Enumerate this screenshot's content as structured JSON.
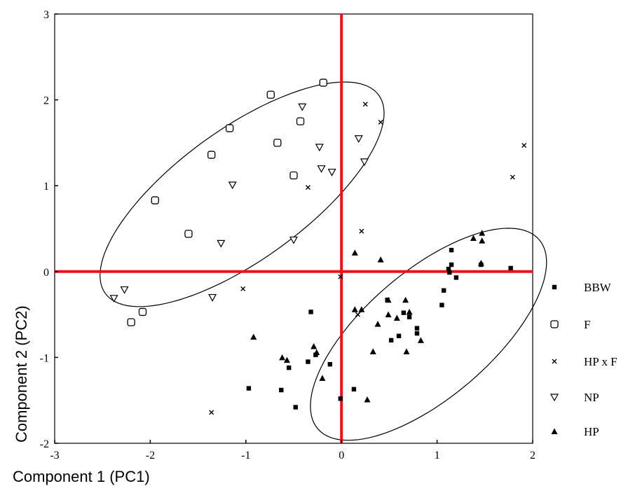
{
  "chart_data": {
    "type": "scatter",
    "xlabel": "Component 1 (PC1)",
    "ylabel": "Component 2 (PC2)",
    "xlim": [
      -3,
      2
    ],
    "ylim": [
      -2,
      3
    ],
    "x_ticks": [
      "-3",
      "-2",
      "-1",
      "0",
      "1",
      "2"
    ],
    "y_ticks": [
      "-2",
      "-1",
      "0",
      "1",
      "2",
      "3"
    ],
    "grid": false,
    "legend_position": "right",
    "reference_lines": {
      "x": 0,
      "y": 0,
      "color": "#e8141c"
    },
    "ellipses": [
      {
        "center": [
          -1.04,
          0.9
        ],
        "semi_axes": [
          1.84,
          0.73
        ],
        "angle_deg": 40
      },
      {
        "center": [
          0.91,
          -0.73
        ],
        "semi_axes": [
          1.6,
          0.7
        ],
        "angle_deg": 45
      }
    ],
    "series": [
      {
        "name": "BBW",
        "marker": "square-filled",
        "points": [
          [
            1.15,
            0.25
          ],
          [
            1.15,
            0.08
          ],
          [
            1.12,
            0.03
          ],
          [
            1.13,
            -0.01
          ],
          [
            1.2,
            -0.07
          ],
          [
            1.07,
            -0.22
          ],
          [
            1.05,
            -0.39
          ],
          [
            1.46,
            0.08
          ],
          [
            1.77,
            0.04
          ],
          [
            0.48,
            -0.33
          ],
          [
            0.65,
            -0.48
          ],
          [
            0.71,
            -0.53
          ],
          [
            0.79,
            -0.66
          ],
          [
            0.79,
            -0.72
          ],
          [
            0.6,
            -0.75
          ],
          [
            0.52,
            -0.8
          ],
          [
            -0.32,
            -0.47
          ],
          [
            -0.27,
            -0.97
          ],
          [
            -0.35,
            -1.05
          ],
          [
            -0.12,
            -1.08
          ],
          [
            -0.55,
            -1.12
          ],
          [
            -0.63,
            -1.38
          ],
          [
            -0.97,
            -1.36
          ],
          [
            -0.48,
            -1.58
          ],
          [
            0.13,
            -1.37
          ],
          [
            -0.01,
            -1.48
          ]
        ]
      },
      {
        "name": "F",
        "marker": "square-open",
        "points": [
          [
            -0.19,
            2.2
          ],
          [
            -0.74,
            2.06
          ],
          [
            -0.43,
            1.75
          ],
          [
            -1.17,
            1.67
          ],
          [
            -0.67,
            1.5
          ],
          [
            -1.36,
            1.36
          ],
          [
            -0.5,
            1.12
          ],
          [
            -1.95,
            0.83
          ],
          [
            -1.6,
            0.44
          ],
          [
            -2.08,
            -0.47
          ],
          [
            -2.2,
            -0.59
          ]
        ]
      },
      {
        "name": "HP x F",
        "marker": "x",
        "points": [
          [
            0.25,
            1.95
          ],
          [
            0.41,
            1.74
          ],
          [
            1.91,
            1.47
          ],
          [
            1.79,
            1.1
          ],
          [
            -0.35,
            0.98
          ],
          [
            0.21,
            0.47
          ],
          [
            -1.03,
            -0.2
          ],
          [
            0.17,
            -0.5
          ],
          [
            -0.01,
            -0.06
          ],
          [
            -1.36,
            -1.64
          ]
        ]
      },
      {
        "name": "NP",
        "marker": "triangle-down-open",
        "points": [
          [
            -0.41,
            1.92
          ],
          [
            0.18,
            1.55
          ],
          [
            -0.23,
            1.45
          ],
          [
            0.24,
            1.28
          ],
          [
            -0.21,
            1.2
          ],
          [
            -0.1,
            1.16
          ],
          [
            -1.14,
            1.01
          ],
          [
            -1.26,
            0.33
          ],
          [
            -0.5,
            0.37
          ],
          [
            -2.27,
            -0.21
          ],
          [
            -2.38,
            -0.31
          ],
          [
            -1.35,
            -0.3
          ]
        ]
      },
      {
        "name": "HP",
        "marker": "triangle-filled",
        "points": [
          [
            1.47,
            0.45
          ],
          [
            1.38,
            0.39
          ],
          [
            1.47,
            0.36
          ],
          [
            1.46,
            0.1
          ],
          [
            0.41,
            0.14
          ],
          [
            0.14,
            0.22
          ],
          [
            0.14,
            -0.44
          ],
          [
            0.21,
            -0.44
          ],
          [
            0.49,
            -0.33
          ],
          [
            0.67,
            -0.33
          ],
          [
            0.49,
            -0.5
          ],
          [
            0.71,
            -0.47
          ],
          [
            0.58,
            -0.54
          ],
          [
            0.38,
            -0.61
          ],
          [
            0.83,
            -0.8
          ],
          [
            0.68,
            -0.93
          ],
          [
            0.33,
            -0.93
          ],
          [
            -0.92,
            -0.76
          ],
          [
            -0.29,
            -0.87
          ],
          [
            -0.26,
            -0.94
          ],
          [
            -0.62,
            -1.0
          ],
          [
            -0.57,
            -1.03
          ],
          [
            -0.2,
            -1.24
          ],
          [
            0.27,
            -1.49
          ]
        ]
      }
    ]
  }
}
